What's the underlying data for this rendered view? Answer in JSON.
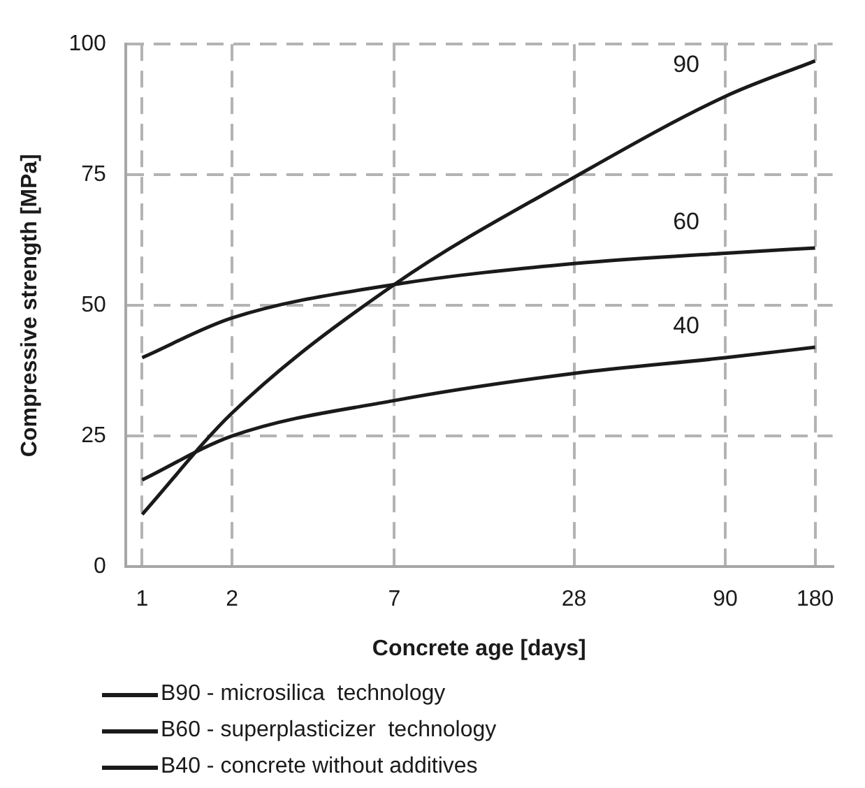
{
  "chart_data": {
    "type": "line",
    "xlabel": "Concrete age [days]",
    "ylabel": "Compressive strength [MPa]",
    "x": [
      1,
      2,
      7,
      28,
      90,
      180
    ],
    "series": [
      {
        "name": "B90 - microsilica  technology",
        "color": "#1a1a1a",
        "values": [
          10,
          29.4,
          54,
          74.5,
          90,
          96.8
        ]
      },
      {
        "name": "B60 - superplasticizer  technology",
        "color": "#1a1a1a",
        "values": [
          40,
          47.6,
          54,
          58,
          60,
          61
        ]
      },
      {
        "name": "B40 - concrete without additives",
        "color": "#1a1a1a",
        "values": [
          16.6,
          25,
          31.8,
          37,
          40,
          42
        ]
      }
    ],
    "log": "x",
    "xlim": [
      0.88,
      206
    ],
    "xticks": [
      1,
      2,
      7,
      28,
      90,
      180
    ],
    "ylim": [
      0,
      100
    ],
    "yticks": [
      0,
      25,
      50,
      75,
      100
    ],
    "grid": true,
    "legend": "bottom",
    "marker": "none",
    "line_style": "solid",
    "annotations": [
      "90",
      "60",
      "40"
    ]
  }
}
